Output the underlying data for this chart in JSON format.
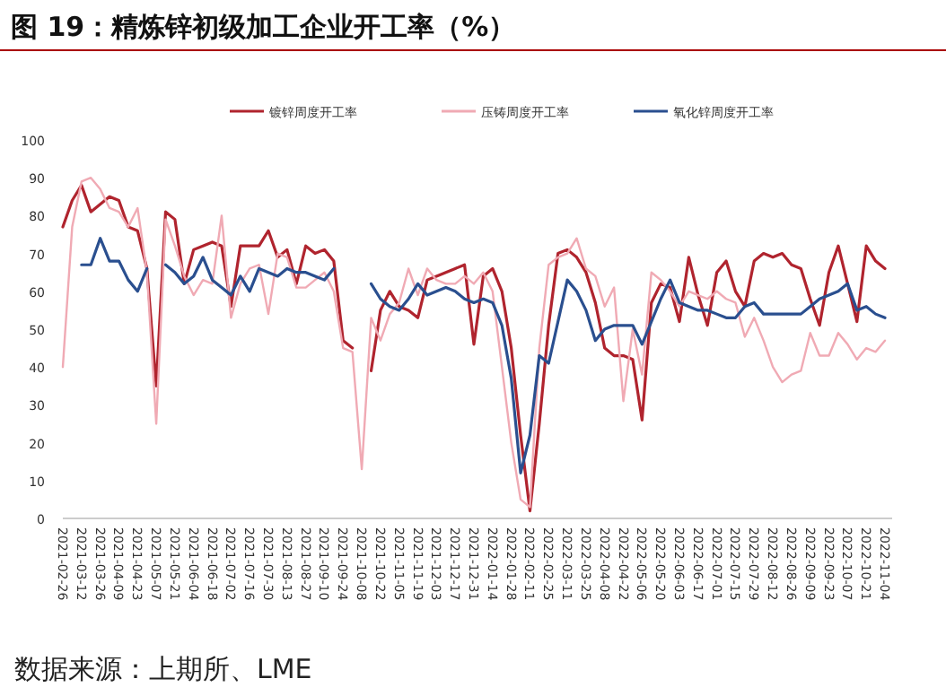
{
  "chart_data": {
    "type": "line",
    "title": "图 19：精炼锌初级加工企业开工率（%）",
    "categories": [
      "2021-02-26",
      null,
      "2021-03-12",
      null,
      "2021-03-26",
      null,
      "2021-04-09",
      null,
      "2021-04-23",
      null,
      "2021-05-07",
      null,
      "2021-05-21",
      null,
      "2021-06-04",
      null,
      "2021-06-18",
      null,
      "2021-07-02",
      null,
      "2021-07-16",
      null,
      "2021-07-30",
      null,
      "2021-08-13",
      null,
      "2021-08-27",
      null,
      "2021-09-10",
      null,
      "2021-09-24",
      null,
      "2021-10-08",
      null,
      "2021-10-22",
      null,
      "2021-11-05",
      null,
      "2021-11-19",
      null,
      "2021-12-03",
      null,
      "2021-12-17",
      null,
      "2021-12-31",
      null,
      "2022-01-14",
      null,
      "2022-01-28",
      null,
      "2022-02-11",
      null,
      "2022-02-25",
      null,
      "2022-03-11",
      null,
      "2022-03-25",
      null,
      "2022-04-08",
      null,
      "2022-04-22",
      null,
      "2022-05-06",
      null,
      "2022-05-20",
      null,
      "2022-06-03",
      null,
      "2022-06-17",
      null,
      "2022-07-01",
      null,
      "2022-07-15",
      null,
      "2022-07-29",
      null,
      "2022-08-12",
      null,
      "2022-08-26",
      null,
      "2022-09-09",
      null,
      "2022-09-23",
      null,
      "2022-10-07",
      null,
      "2022-10-21",
      null,
      "2022-11-04"
    ],
    "series": [
      {
        "name": "镀锌周度开工率",
        "color": "#b0242e",
        "values": [
          77,
          84,
          88,
          81,
          83,
          85,
          84,
          77,
          76,
          66,
          35,
          81,
          79,
          62,
          71,
          72,
          73,
          72,
          56,
          72,
          72,
          72,
          76,
          69,
          71,
          62,
          72,
          70,
          71,
          68,
          47,
          45,
          null,
          39,
          55,
          60,
          56,
          55,
          53,
          63,
          64,
          65,
          66,
          67,
          46,
          64,
          66,
          60,
          45,
          22,
          2,
          25,
          51,
          70,
          71,
          69,
          65,
          57,
          45,
          43,
          43,
          42,
          26,
          57,
          62,
          61,
          52,
          69,
          59,
          51,
          65,
          68,
          60,
          56,
          68,
          70,
          69,
          70,
          67,
          66,
          58,
          51,
          65,
          72,
          62,
          52,
          72,
          68,
          66
        ]
      },
      {
        "name": "压铸周度开工率",
        "color": "#f0aab4",
        "values": [
          40,
          77,
          89,
          90,
          87,
          82,
          81,
          77,
          82,
          65,
          25,
          79,
          72,
          64,
          59,
          63,
          62,
          80,
          53,
          62,
          66,
          67,
          54,
          70,
          69,
          61,
          61,
          63,
          65,
          60,
          45,
          44,
          13,
          53,
          47,
          54,
          57,
          66,
          59,
          66,
          63,
          62,
          62,
          64,
          62,
          65,
          60,
          40,
          20,
          5,
          3,
          45,
          67,
          69,
          70,
          74,
          66,
          64,
          56,
          61,
          31,
          50,
          38,
          65,
          63,
          60,
          56,
          60,
          59,
          58,
          60,
          58,
          57,
          48,
          53,
          47,
          40,
          36,
          38,
          39,
          49,
          43,
          43,
          49,
          46,
          42,
          45,
          44,
          47
        ]
      },
      {
        "name": "氧化锌周度开工率",
        "color": "#2a4f8f",
        "values": [
          null,
          null,
          67,
          67,
          74,
          68,
          68,
          63,
          60,
          66,
          null,
          67,
          65,
          62,
          64,
          69,
          63,
          61,
          59,
          64,
          60,
          66,
          65,
          64,
          66,
          65,
          65,
          64,
          63,
          66,
          null,
          null,
          null,
          62,
          58,
          56,
          55,
          58,
          62,
          59,
          60,
          61,
          60,
          58,
          57,
          58,
          57,
          51,
          37,
          12,
          22,
          43,
          41,
          52,
          63,
          60,
          55,
          47,
          50,
          51,
          51,
          51,
          46,
          52,
          58,
          63,
          57,
          56,
          55,
          55,
          54,
          53,
          53,
          56,
          57,
          54,
          54,
          54,
          54,
          54,
          56,
          58,
          59,
          60,
          62,
          55,
          56,
          54,
          53
        ]
      }
    ],
    "ylim": [
      0,
      100
    ],
    "yticks": [
      0,
      10,
      20,
      30,
      40,
      50,
      60,
      70,
      80,
      90,
      100
    ],
    "legend": "top",
    "annotations": [
      "数据来源：上期所、LME"
    ]
  }
}
